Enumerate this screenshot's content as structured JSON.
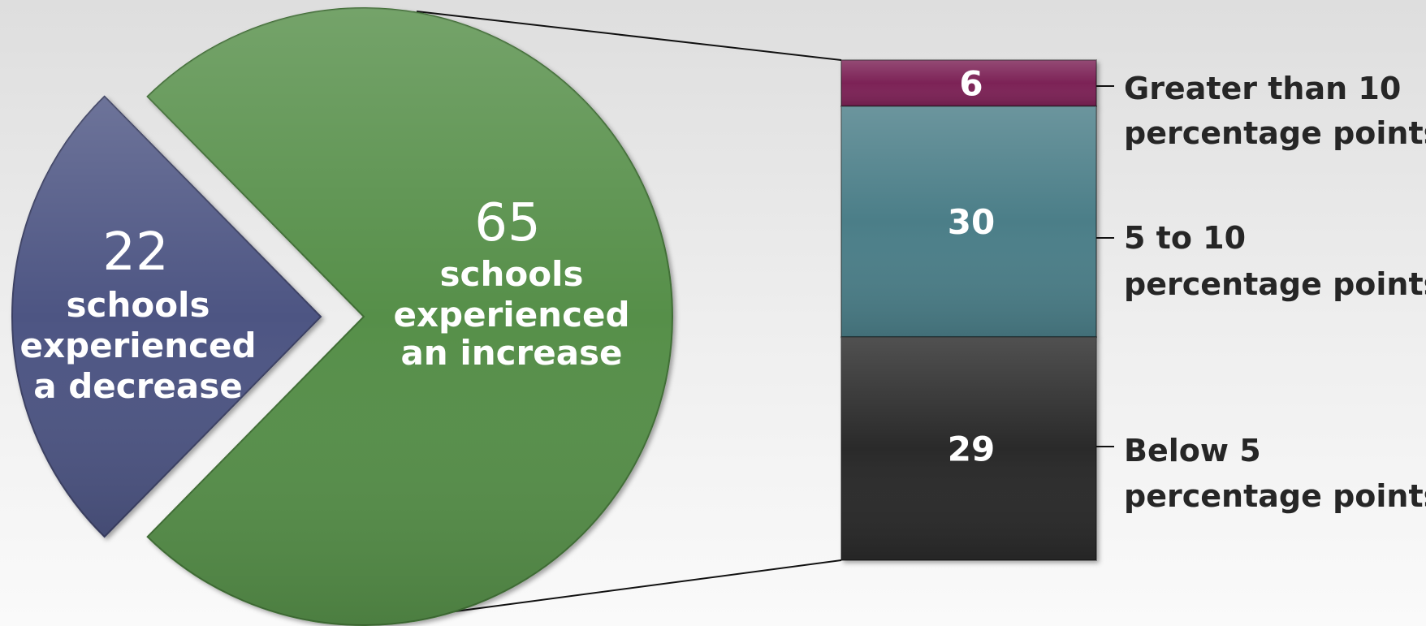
{
  "chart_data": {
    "type": "pie",
    "pie": {
      "slices": [
        {
          "value": 22,
          "value_label": "22",
          "label_lines": [
            "schools",
            "experienced",
            "a decrease"
          ],
          "color": "#4e5483"
        },
        {
          "value": 65,
          "value_label": "65",
          "label_lines": [
            "schools",
            "experienced",
            "an increase"
          ],
          "color": "#568f49"
        }
      ]
    },
    "breakdown": {
      "of_slice": "65",
      "segments": [
        {
          "value": 6,
          "value_label": "6",
          "label_lines": [
            "Greater than 10",
            "percentage points"
          ],
          "color": "#7b2156"
        },
        {
          "value": 30,
          "value_label": "30",
          "label_lines": [
            "5 to 10",
            "percentage points"
          ],
          "color": "#4c7e88"
        },
        {
          "value": 29,
          "value_label": "29",
          "label_lines": [
            "Below 5",
            "percentage points"
          ],
          "color": "#2b2b2b"
        }
      ]
    }
  }
}
